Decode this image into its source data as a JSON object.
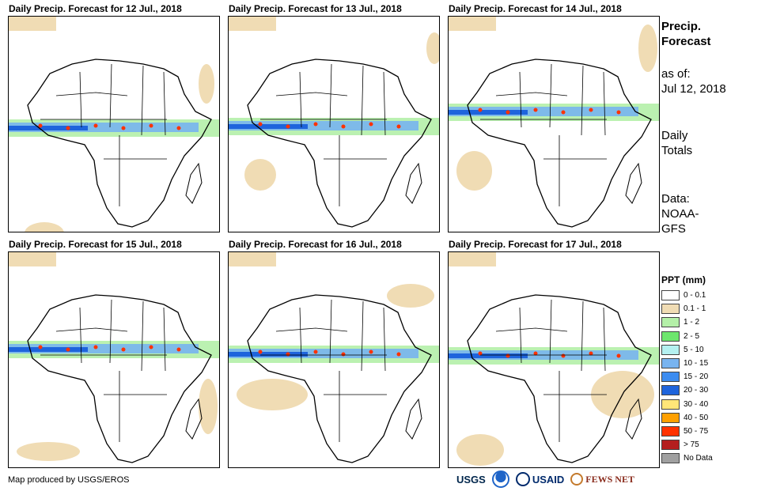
{
  "panels": [
    {
      "title": "Daily Precip. Forecast for 12 Jul., 2018"
    },
    {
      "title": "Daily Precip. Forecast for 13 Jul., 2018"
    },
    {
      "title": "Daily Precip. Forecast for 14 Jul., 2018"
    },
    {
      "title": "Daily Precip. Forecast for 15 Jul., 2018"
    },
    {
      "title": "Daily Precip. Forecast for 16 Jul., 2018"
    },
    {
      "title": "Daily Precip. Forecast for 17 Jul., 2018"
    }
  ],
  "side": {
    "title_line1": "Precip.",
    "title_line2": "Forecast",
    "asof_label": "as of:",
    "asof_date": "Jul 12, 2018",
    "totals_line1": "Daily",
    "totals_line2": "Totals",
    "data_line1": "Data:",
    "data_line2": "NOAA-",
    "data_line3": "GFS"
  },
  "legend": {
    "title": "PPT (mm)",
    "items": [
      {
        "label": "0 - 0.1",
        "color": "#ffffff"
      },
      {
        "label": "0.1 - 1",
        "color": "#f0dcb4"
      },
      {
        "label": "1 - 2",
        "color": "#b4f0a8"
      },
      {
        "label": "2 - 5",
        "color": "#6ee66e"
      },
      {
        "label": "5 - 10",
        "color": "#b4f0f0"
      },
      {
        "label": "10 - 15",
        "color": "#78b4f0"
      },
      {
        "label": "15 - 20",
        "color": "#3c8cf0"
      },
      {
        "label": "20 - 30",
        "color": "#1e64dc"
      },
      {
        "label": "30 - 40",
        "color": "#ffe678"
      },
      {
        "label": "40 - 50",
        "color": "#ffa000"
      },
      {
        "label": "50 - 75",
        "color": "#ff3200"
      },
      {
        "label": "> 75",
        "color": "#b41e1e"
      },
      {
        "label": "No Data",
        "color": "#a0a0a0"
      }
    ]
  },
  "footer": {
    "credit": "Map produced by USGS/EROS",
    "logos": [
      "USGS",
      "NOAA",
      "USAID",
      "FEWS NET"
    ]
  }
}
